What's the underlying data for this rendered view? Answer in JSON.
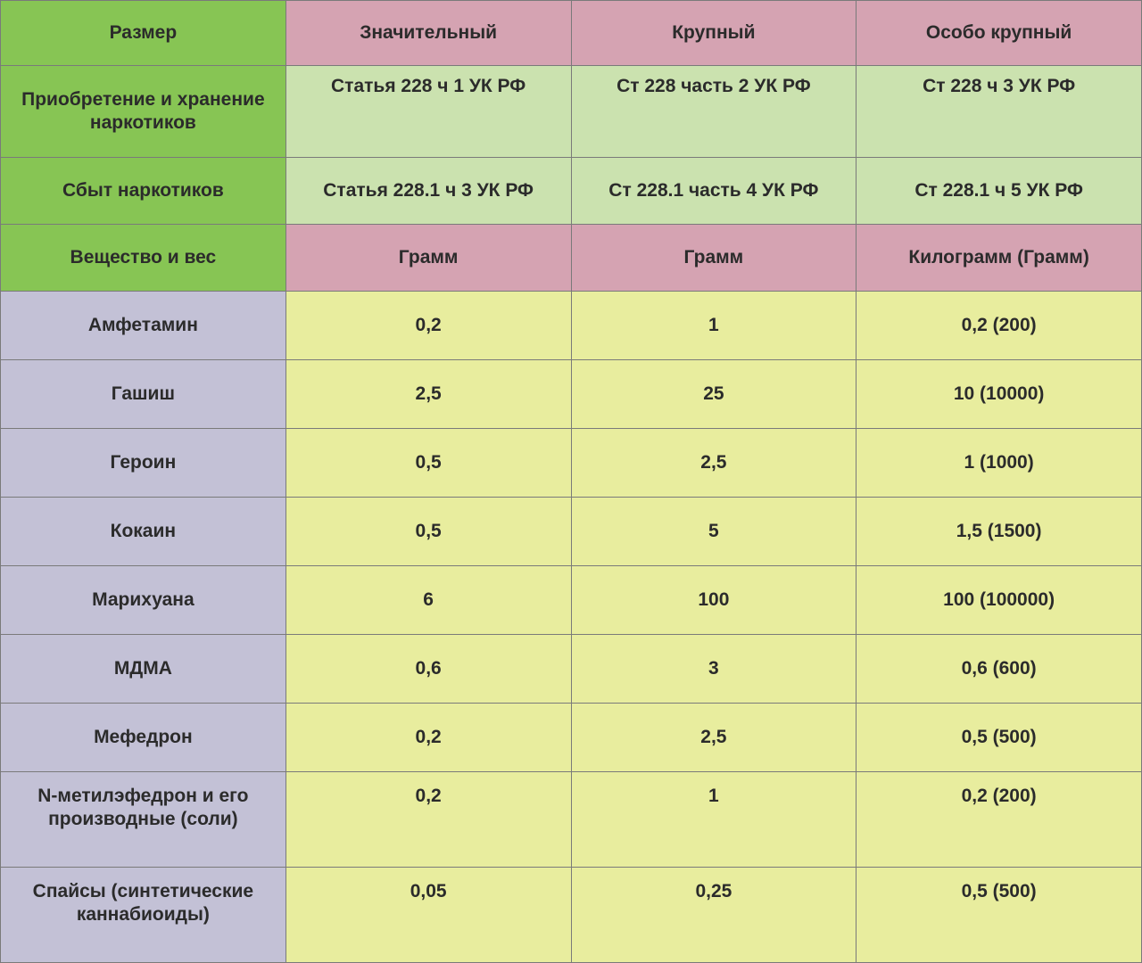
{
  "table": {
    "col_widths_pct": [
      25,
      25,
      25,
      25
    ],
    "colors": {
      "green_header": "#87c554",
      "pink_header": "#d5a3b2",
      "green_body": "#cbe2af",
      "lavender": "#c3c1d6",
      "yellow": "#e8ed9e",
      "border": "#7a7a7a",
      "text": "#2b2b2b"
    },
    "font": {
      "family": "Arial",
      "weight": 700,
      "size_pt": 16
    },
    "header": {
      "row1": {
        "label": "Размер",
        "cols": [
          "Значительный",
          "Крупный",
          "Особо крупный"
        ]
      },
      "row2": {
        "label": "Приобретение и хранение наркотиков",
        "cols": [
          "Статья 228 ч 1 УК  РФ",
          "Ст 228 часть 2 УК РФ",
          "Ст 228 ч 3 УК РФ"
        ]
      },
      "row3": {
        "label": "Сбыт наркотиков",
        "cols": [
          "Статья 228.1 ч 3 УК РФ",
          "Ст 228.1 часть 4 УК РФ",
          "Ст 228.1 ч 5 УК РФ"
        ]
      },
      "row4": {
        "label": "Вещество и вес",
        "cols": [
          "Грамм",
          "Грамм",
          "Килограмм (Грамм)"
        ]
      }
    },
    "rows": [
      {
        "name": "Амфетамин",
        "v": [
          "0,2",
          "1",
          "0,2 (200)"
        ],
        "tall": false
      },
      {
        "name": "Гашиш",
        "v": [
          "2,5",
          "25",
          "10 (10000)"
        ],
        "tall": false
      },
      {
        "name": "Героин",
        "v": [
          "0,5",
          "2,5",
          "1 (1000)"
        ],
        "tall": false
      },
      {
        "name": "Кокаин",
        "v": [
          "0,5",
          "5",
          "1,5 (1500)"
        ],
        "tall": false
      },
      {
        "name": "Марихуана",
        "v": [
          "6",
          "100",
          "100 (100000)"
        ],
        "tall": false
      },
      {
        "name": "МДМА",
        "v": [
          "0,6",
          "3",
          "0,6 (600)"
        ],
        "tall": false
      },
      {
        "name": "Мефедрон",
        "v": [
          "0,2",
          "2,5",
          "0,5 (500)"
        ],
        "tall": false
      },
      {
        "name": "N-метилэфедрон и его производные (соли)",
        "v": [
          "0,2",
          "1",
          "0,2 (200)"
        ],
        "tall": true,
        "valign": "top"
      },
      {
        "name": "Спайсы (синтетические каннабиоиды)",
        "v": [
          "0,05",
          "0,25",
          "0,5 (500)"
        ],
        "tall": true,
        "valign": "top"
      }
    ]
  }
}
